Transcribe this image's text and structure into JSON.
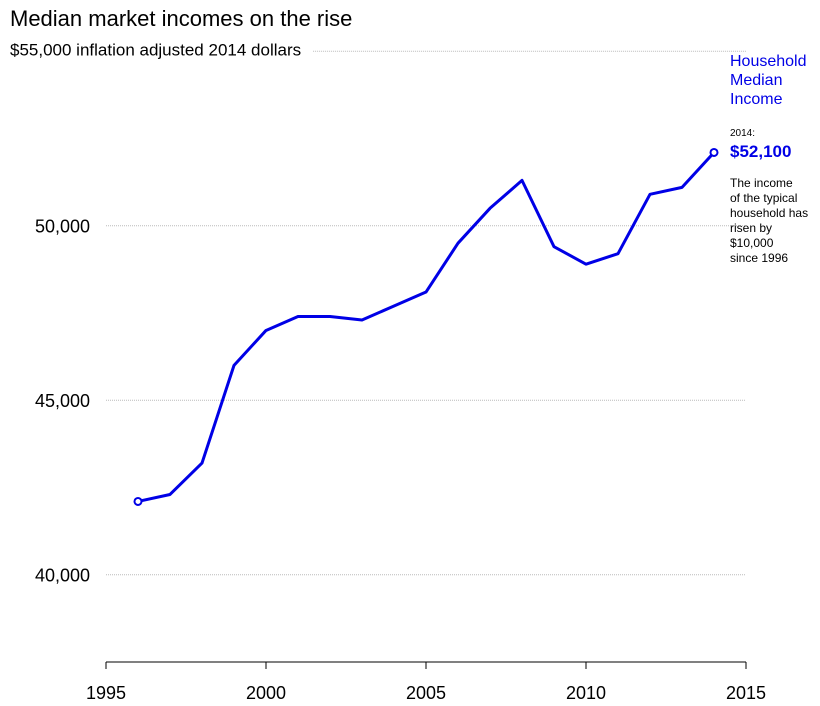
{
  "chart_data": {
    "type": "line",
    "title": "Median market incomes on the rise",
    "x": [
      1996,
      1997,
      1998,
      1999,
      2000,
      2001,
      2002,
      2003,
      2004,
      2005,
      2006,
      2007,
      2008,
      2009,
      2010,
      2011,
      2012,
      2013,
      2014
    ],
    "series": [
      {
        "name": "Household Median Income",
        "color": "#0000e6",
        "values": [
          42100,
          42300,
          43200,
          46000,
          47000,
          47400,
          47400,
          47300,
          47700,
          48100,
          49500,
          50500,
          51300,
          49400,
          48900,
          49200,
          50900,
          51100,
          52100
        ]
      }
    ],
    "xlim": [
      1995,
      2015
    ],
    "xticks": [
      1995,
      2000,
      2005,
      2010,
      2015
    ],
    "ylim": [
      37500,
      55000
    ],
    "yticks": [
      {
        "value": 40000,
        "label": "40,000"
      },
      {
        "value": 45000,
        "label": "45,000"
      },
      {
        "value": 50000,
        "label": "50,000"
      },
      {
        "value": 55000,
        "label": "$55,000 inflation adjusted 2014 dollars"
      }
    ],
    "grid": true,
    "annotation": {
      "label": "2014:",
      "value_label": "$52,100",
      "note_lines": [
        "The income",
        "of the typical",
        "household has",
        "risen by",
        "$10,000",
        "since 1996"
      ]
    }
  }
}
